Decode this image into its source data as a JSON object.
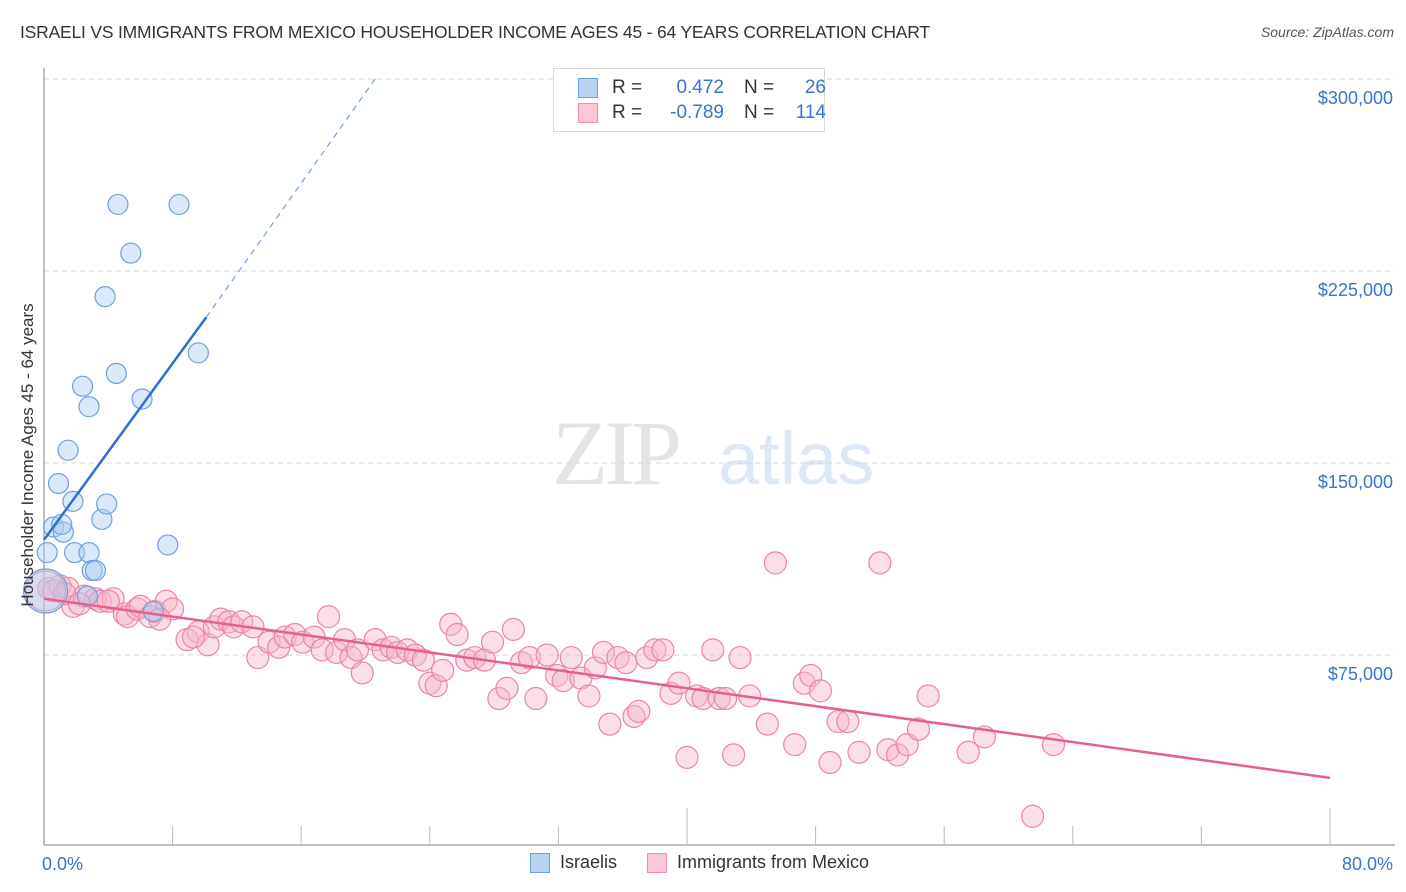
{
  "header": {
    "title": "ISRAELI VS IMMIGRANTS FROM MEXICO HOUSEHOLDER INCOME AGES 45 - 64 YEARS CORRELATION CHART",
    "source": "Source: ZipAtlas.com"
  },
  "watermark": {
    "part1": "ZIP",
    "part2": "atlas"
  },
  "legend": {
    "rows": [
      {
        "label": "R =",
        "r": "0.472",
        "n_label": "N =",
        "n": "26",
        "color": "#b9d3f5",
        "border": "#6e9fe0"
      },
      {
        "label": "R =",
        "r": "-0.789",
        "n_label": "N =",
        "n": "114",
        "color": "#fbc8d6",
        "border": "#ee8fab"
      }
    ]
  },
  "bottom_legend": {
    "items": [
      {
        "label": "Israelis",
        "color": "#b9d3f5",
        "border": "#6e9fe0"
      },
      {
        "label": "Immigrants from Mexico",
        "color": "#fbc8d6",
        "border": "#ee8fab"
      }
    ]
  },
  "axes": {
    "ylabel": "Householder Income Ages 45 - 64 years",
    "y_ticks": [
      "$300,000",
      "$225,000",
      "$150,000",
      "$75,000"
    ],
    "x_ticks": [
      "0.0%",
      "80.0%"
    ]
  },
  "chart_data": {
    "type": "scatter",
    "title": "ISRAELI VS IMMIGRANTS FROM MEXICO HOUSEHOLDER INCOME AGES 45 - 64 YEARS CORRELATION CHART",
    "xlabel": "",
    "ylabel": "Householder Income Ages 45 - 64 years",
    "xlim": [
      0,
      80
    ],
    "ylim": [
      0,
      300000
    ],
    "x_unit": "%",
    "y_ticks": [
      75000,
      150000,
      225000,
      300000
    ],
    "grid": "horizontal dashed",
    "legend_position": "top-center and bottom",
    "series": [
      {
        "name": "Israelis",
        "color": "#6e9fe0",
        "R": 0.472,
        "N": 26,
        "trend": {
          "x": [
            0,
            10.1
          ],
          "y": [
            120000,
            207000
          ],
          "dashed_extension_to": [
            20.6,
            300000
          ]
        },
        "points": [
          [
            0.1,
            100000
          ],
          [
            0.2,
            115000
          ],
          [
            0.6,
            125000
          ],
          [
            0.9,
            142000
          ],
          [
            1.2,
            123000
          ],
          [
            1.5,
            155000
          ],
          [
            1.8,
            135000
          ],
          [
            1.9,
            115000
          ],
          [
            2.4,
            180000
          ],
          [
            2.8,
            115000
          ],
          [
            2.8,
            172000
          ],
          [
            3.0,
            108000
          ],
          [
            3.2,
            108000
          ],
          [
            3.6,
            128000
          ],
          [
            3.9,
            134000
          ],
          [
            3.8,
            215000
          ],
          [
            4.5,
            185000
          ],
          [
            4.6,
            251000
          ],
          [
            5.4,
            232000
          ],
          [
            6.1,
            175000
          ],
          [
            7.7,
            118000
          ],
          [
            8.4,
            251000
          ],
          [
            9.6,
            193000
          ],
          [
            2.7,
            98000
          ],
          [
            6.8,
            92000
          ],
          [
            1.1,
            126000
          ]
        ]
      },
      {
        "name": "Immigrants from Mexico",
        "color": "#ee8fab",
        "R": -0.789,
        "N": 114,
        "trend": {
          "x": [
            0,
            80
          ],
          "y": [
            97000,
            27000
          ]
        },
        "points": [
          [
            0.3,
            101000
          ],
          [
            0.6,
            100000
          ],
          [
            1.0,
            102000
          ],
          [
            1.5,
            101000
          ],
          [
            1.8,
            94000
          ],
          [
            2.5,
            98000
          ],
          [
            3.2,
            97000
          ],
          [
            3.5,
            96000
          ],
          [
            4.3,
            97000
          ],
          [
            5.0,
            91000
          ],
          [
            5.2,
            90000
          ],
          [
            5.8,
            93000
          ],
          [
            6.0,
            94000
          ],
          [
            6.6,
            90000
          ],
          [
            6.9,
            92000
          ],
          [
            7.6,
            96000
          ],
          [
            8.0,
            93000
          ],
          [
            8.9,
            81000
          ],
          [
            9.6,
            84000
          ],
          [
            10.2,
            79000
          ],
          [
            10.6,
            86000
          ],
          [
            11.0,
            89000
          ],
          [
            11.5,
            88000
          ],
          [
            11.8,
            86000
          ],
          [
            12.3,
            88000
          ],
          [
            13.0,
            86000
          ],
          [
            13.3,
            74000
          ],
          [
            14.0,
            80000
          ],
          [
            14.6,
            78000
          ],
          [
            15.0,
            82000
          ],
          [
            15.6,
            83000
          ],
          [
            16.1,
            80000
          ],
          [
            16.8,
            82000
          ],
          [
            17.3,
            77000
          ],
          [
            17.7,
            90000
          ],
          [
            18.2,
            76000
          ],
          [
            18.7,
            81000
          ],
          [
            19.1,
            74000
          ],
          [
            19.5,
            77000
          ],
          [
            19.8,
            68000
          ],
          [
            20.6,
            81000
          ],
          [
            21.1,
            77000
          ],
          [
            21.6,
            78000
          ],
          [
            22.0,
            76000
          ],
          [
            22.6,
            77000
          ],
          [
            23.1,
            75000
          ],
          [
            23.6,
            73000
          ],
          [
            24.0,
            64000
          ],
          [
            24.4,
            63000
          ],
          [
            24.8,
            69000
          ],
          [
            25.3,
            87000
          ],
          [
            25.7,
            83000
          ],
          [
            26.3,
            73000
          ],
          [
            26.8,
            74000
          ],
          [
            27.4,
            73000
          ],
          [
            27.9,
            80000
          ],
          [
            28.3,
            58000
          ],
          [
            28.8,
            62000
          ],
          [
            29.2,
            85000
          ],
          [
            29.7,
            72000
          ],
          [
            30.2,
            74000
          ],
          [
            30.6,
            58000
          ],
          [
            31.3,
            75000
          ],
          [
            31.9,
            67000
          ],
          [
            32.3,
            65000
          ],
          [
            32.8,
            74000
          ],
          [
            33.4,
            66000
          ],
          [
            33.9,
            59000
          ],
          [
            34.3,
            70000
          ],
          [
            34.8,
            76000
          ],
          [
            35.2,
            48000
          ],
          [
            35.7,
            74000
          ],
          [
            36.2,
            72000
          ],
          [
            36.7,
            51000
          ],
          [
            37.0,
            53000
          ],
          [
            37.5,
            74000
          ],
          [
            38.0,
            77000
          ],
          [
            38.5,
            77000
          ],
          [
            39.0,
            60000
          ],
          [
            39.5,
            64000
          ],
          [
            40.0,
            35000
          ],
          [
            40.6,
            59000
          ],
          [
            41.0,
            58000
          ],
          [
            41.6,
            77000
          ],
          [
            42.0,
            58000
          ],
          [
            42.4,
            58000
          ],
          [
            42.9,
            36000
          ],
          [
            43.3,
            74000
          ],
          [
            43.9,
            59000
          ],
          [
            45.5,
            111000
          ],
          [
            45.0,
            48000
          ],
          [
            46.7,
            40000
          ],
          [
            47.3,
            64000
          ],
          [
            47.7,
            67000
          ],
          [
            48.3,
            61000
          ],
          [
            48.9,
            33000
          ],
          [
            49.4,
            49000
          ],
          [
            50.0,
            49000
          ],
          [
            50.7,
            37000
          ],
          [
            52.0,
            111000
          ],
          [
            52.5,
            38000
          ],
          [
            53.1,
            36000
          ],
          [
            53.7,
            40000
          ],
          [
            54.4,
            46000
          ],
          [
            55.0,
            59000
          ],
          [
            57.5,
            37000
          ],
          [
            58.5,
            43000
          ],
          [
            61.5,
            12000
          ],
          [
            62.8,
            40000
          ],
          [
            1.3,
            99000
          ],
          [
            2.2,
            95000
          ],
          [
            4.0,
            96000
          ],
          [
            7.2,
            89000
          ],
          [
            9.3,
            82000
          ]
        ]
      }
    ]
  }
}
